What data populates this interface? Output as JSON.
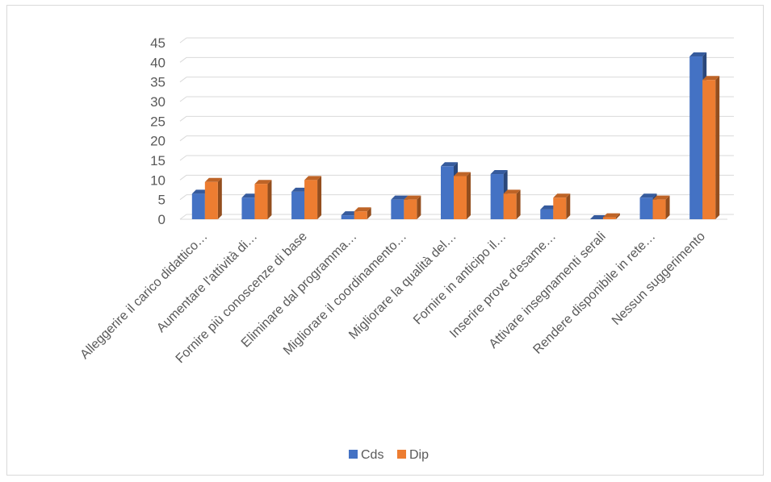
{
  "chart_data": {
    "type": "bar",
    "title": "",
    "xlabel": "",
    "ylabel": "",
    "ylim": [
      0,
      45
    ],
    "yticks": [
      0,
      5,
      10,
      15,
      20,
      25,
      30,
      35,
      40,
      45
    ],
    "grid": true,
    "legend_position": "bottom",
    "categories": [
      "Alleggerire il carico didattico…",
      "Aumentare l'attività di…",
      "Fornire più conoscenze di base",
      "Eliminare dal programma…",
      "Migliorare il coordinamento…",
      "Migliorare la qualità del…",
      "Fornire in anticipo il…",
      "Inserire prove d'esame…",
      "Attivare insegnamenti serali",
      "Rendere disponibile in rete…",
      "Nessun suggerimento"
    ],
    "series": [
      {
        "name": "Cds",
        "color": "#4472c4",
        "values": [
          6.5,
          5.5,
          7,
          1,
          5,
          13.5,
          11.5,
          2.5,
          0,
          5.5,
          41.5
        ]
      },
      {
        "name": "Dip",
        "color": "#ed7d31",
        "values": [
          9.5,
          9,
          10,
          2,
          5,
          11,
          6.5,
          5.5,
          0.5,
          5,
          35.5
        ]
      }
    ]
  }
}
